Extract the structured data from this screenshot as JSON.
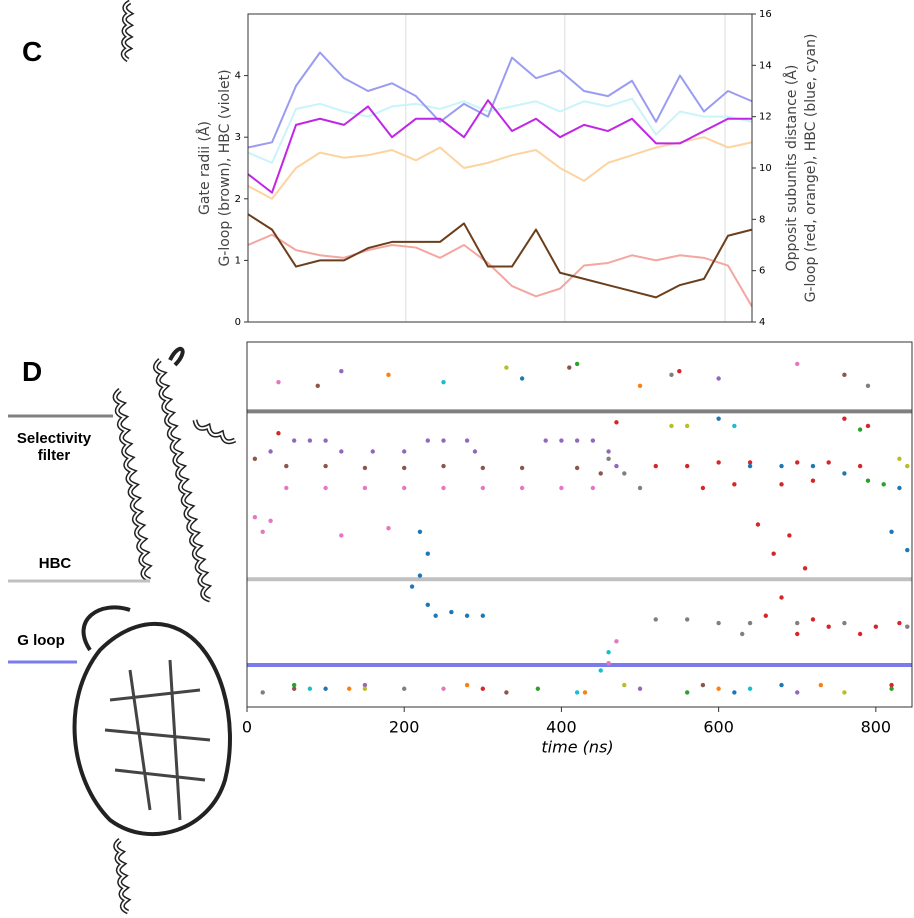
{
  "chart_data": [
    {
      "type": "line",
      "panel_label": "C",
      "ylabel": [
        "Gate radii (Å)",
        "G-loop (brown), HBC (violet)"
      ],
      "y2label": [
        "Opposit subunits distance (Å)",
        "G-loop (red, orange), HBC (blue, cyan)"
      ],
      "x": [
        0,
        40,
        80,
        120,
        160,
        200,
        240,
        280,
        320,
        360,
        400,
        440,
        480,
        520,
        560,
        600,
        640,
        680,
        720,
        760,
        800,
        840
      ],
      "xlim": [
        0,
        840
      ],
      "xticks": [
        263,
        528,
        795
      ],
      "grid": true,
      "ylim": [
        0,
        5
      ],
      "yticks": [
        0,
        1,
        2,
        3,
        4
      ],
      "y2lim": [
        4,
        16
      ],
      "y2ticks": [
        4,
        6,
        8,
        10,
        12,
        14,
        16
      ],
      "series": [
        {
          "color": "#f4a6a0",
          "axis": "y2",
          "values": [
            7.0,
            7.4,
            6.8,
            6.6,
            6.5,
            6.8,
            7.0,
            6.9,
            6.5,
            7.0,
            6.3,
            5.4,
            5.0,
            5.3,
            6.2,
            6.3,
            6.6,
            6.4,
            6.6,
            6.5,
            6.2,
            4.6
          ]
        },
        {
          "color": "#fdd3a0",
          "axis": "y2",
          "values": [
            9.3,
            8.8,
            10.0,
            10.6,
            10.4,
            10.5,
            10.7,
            10.3,
            10.8,
            10.0,
            10.2,
            10.5,
            10.7,
            10.0,
            9.5,
            10.2,
            10.5,
            10.8,
            11.0,
            11.2,
            10.8,
            11.0
          ]
        },
        {
          "color": "#c8f4fa",
          "axis": "y2",
          "values": [
            10.6,
            10.2,
            12.3,
            12.5,
            12.2,
            12.0,
            12.4,
            12.5,
            12.3,
            12.6,
            12.2,
            12.4,
            12.6,
            12.2,
            12.6,
            12.4,
            12.7,
            11.3,
            12.2,
            12.0,
            12.0,
            11.8
          ]
        },
        {
          "color": "#9a9cf0",
          "axis": "y2",
          "values": [
            10.8,
            11.0,
            13.2,
            14.5,
            13.5,
            13.0,
            13.3,
            12.8,
            11.8,
            12.5,
            12.0,
            14.3,
            13.5,
            13.8,
            13.0,
            12.8,
            13.4,
            11.8,
            13.6,
            12.2,
            13.0,
            12.6
          ]
        },
        {
          "color": "#c026e6",
          "axis": "y",
          "values": [
            2.4,
            2.1,
            3.2,
            3.3,
            3.2,
            3.5,
            3.0,
            3.3,
            3.3,
            3.0,
            3.6,
            3.1,
            3.3,
            3.0,
            3.2,
            3.1,
            3.3,
            2.9,
            2.9,
            3.1,
            3.3,
            3.3
          ]
        },
        {
          "color": "#6b3f1c",
          "axis": "y",
          "values": [
            1.75,
            1.5,
            0.9,
            1.0,
            1.0,
            1.2,
            1.3,
            1.3,
            1.3,
            1.6,
            0.9,
            0.9,
            1.5,
            0.8,
            0.7,
            0.6,
            0.5,
            0.4,
            0.6,
            0.7,
            1.4,
            1.5
          ]
        }
      ]
    },
    {
      "type": "scatter",
      "panel_label": "D",
      "xlabel": "time (ns)",
      "xlim": [
        0,
        846
      ],
      "xticks": [
        0,
        200,
        400,
        600,
        800
      ],
      "ylim": [
        0,
        100
      ],
      "regions": [
        {
          "label": "Selectivity filter",
          "value": 81,
          "color": "#808080"
        },
        {
          "label": "HBC",
          "value": 35,
          "color": "#c0c0c0"
        },
        {
          "label": "G loop",
          "value": 11.5,
          "color": "#7b7bf0"
        }
      ],
      "series": [
        {
          "color": "#9467bd",
          "x": [
            30,
            60,
            80,
            100,
            120,
            160,
            200,
            230,
            250,
            280,
            290,
            380,
            400,
            420,
            440,
            460,
            470,
            120,
            500,
            700,
            150,
            600
          ],
          "y": [
            70,
            73,
            73,
            73,
            70,
            70,
            70,
            73,
            73,
            73,
            70,
            73,
            73,
            73,
            73,
            70,
            66,
            92,
            5,
            4,
            6,
            90
          ]
        },
        {
          "color": "#8c564b",
          "x": [
            10,
            50,
            100,
            150,
            200,
            250,
            300,
            350,
            420,
            450,
            60,
            330,
            580,
            90,
            410,
            760
          ],
          "y": [
            68,
            66,
            66,
            65.5,
            65.5,
            66,
            65.5,
            65.5,
            65.5,
            64,
            5,
            4,
            6,
            88,
            93,
            91
          ]
        },
        {
          "color": "#e377c2",
          "x": [
            50,
            100,
            150,
            200,
            250,
            300,
            350,
            400,
            440,
            10,
            20,
            30,
            120,
            180,
            470,
            460,
            250,
            700,
            40
          ],
          "y": [
            60,
            60,
            60,
            60,
            60,
            60,
            60,
            60,
            60,
            52,
            48,
            51,
            47,
            49,
            18,
            12,
            5,
            94,
            89
          ]
        },
        {
          "color": "#d62728",
          "x": [
            40,
            470,
            520,
            560,
            600,
            640,
            700,
            740,
            780,
            580,
            620,
            680,
            720,
            650,
            670,
            690,
            710,
            680,
            660,
            700,
            720,
            740,
            780,
            800,
            830,
            760,
            790,
            300,
            820,
            550
          ],
          "y": [
            75,
            78,
            66,
            66,
            67,
            67,
            67,
            67,
            66,
            60,
            61,
            61,
            62,
            50,
            42,
            47,
            38,
            30,
            25,
            20,
            24,
            22,
            20,
            22,
            23,
            79,
            77,
            5,
            6,
            92
          ]
        },
        {
          "color": "#1f77b4",
          "x": [
            220,
            230,
            220,
            210,
            230,
            240,
            260,
            280,
            300,
            600,
            640,
            680,
            720,
            760,
            830,
            820,
            840,
            100,
            620,
            680,
            350
          ],
          "y": [
            48,
            42,
            36,
            33,
            28,
            25,
            26,
            25,
            25,
            79,
            66,
            66,
            66,
            64,
            60,
            48,
            43,
            5,
            4,
            6,
            90
          ]
        },
        {
          "color": "#7f7f7f",
          "x": [
            460,
            480,
            500,
            520,
            560,
            600,
            640,
            700,
            760,
            840,
            630,
            20,
            200,
            540,
            790
          ],
          "y": [
            68,
            64,
            60,
            24,
            24,
            23,
            23,
            23,
            23,
            22,
            20,
            4,
            5,
            91,
            88
          ]
        },
        {
          "color": "#bcbd22",
          "x": [
            540,
            560,
            830,
            840,
            150,
            480,
            760,
            330
          ],
          "y": [
            77,
            77,
            68,
            66,
            5,
            6,
            4,
            93
          ]
        },
        {
          "color": "#17becf",
          "x": [
            620,
            450,
            460,
            80,
            420,
            640,
            250
          ],
          "y": [
            77,
            10,
            15,
            5,
            4,
            5,
            89
          ]
        },
        {
          "color": "#2ca02c",
          "x": [
            790,
            780,
            810,
            60,
            370,
            560,
            820,
            420
          ],
          "y": [
            62,
            76,
            61,
            6,
            5,
            4,
            5,
            94
          ]
        },
        {
          "color": "#ff7f0e",
          "x": [
            130,
            280,
            430,
            600,
            730,
            180,
            500
          ],
          "y": [
            5,
            6,
            4,
            5,
            6,
            91,
            88
          ]
        }
      ]
    }
  ]
}
